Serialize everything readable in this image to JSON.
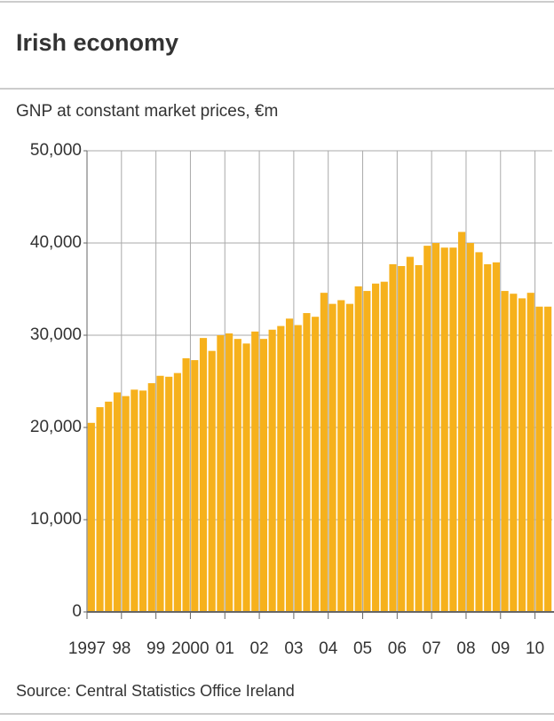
{
  "chart_data": {
    "type": "bar",
    "title": "Irish economy",
    "subtitle": "GNP at constant market prices, €m",
    "source": "Source: Central Statistics Office Ireland",
    "color": "#f6b11c",
    "grid": true,
    "categories": [
      "1997",
      null,
      null,
      null,
      "98",
      null,
      null,
      null,
      "99",
      null,
      null,
      null,
      "2000",
      null,
      null,
      null,
      "01",
      null,
      null,
      null,
      "02",
      null,
      null,
      null,
      "03",
      null,
      null,
      null,
      "04",
      null,
      null,
      null,
      "05",
      null,
      null,
      null,
      "06",
      null,
      null,
      null,
      "07",
      null,
      null,
      null,
      "08",
      null,
      null,
      null,
      "09",
      null,
      null,
      null,
      "10",
      null
    ],
    "values": [
      20500,
      22200,
      22800,
      23800,
      23400,
      24100,
      24000,
      24800,
      25600,
      25500,
      25900,
      27500,
      27300,
      29700,
      28300,
      30000,
      30200,
      29600,
      29100,
      30400,
      29600,
      30600,
      31000,
      31800,
      31100,
      32400,
      32000,
      34600,
      33400,
      33800,
      33400,
      35300,
      34800,
      35600,
      35800,
      37700,
      37500,
      38500,
      37600,
      39700,
      40000,
      39500,
      39500,
      41200,
      40000,
      39000,
      37700,
      37900,
      34800,
      34500,
      34000,
      34600,
      33100,
      33100
    ],
    "ylim": [
      0,
      50000
    ],
    "yticks": [
      0,
      {
        "value": 10000,
        "label": "10,000"
      },
      {
        "value": 20000,
        "label": "20,000"
      },
      {
        "value": 30000,
        "label": "30,000"
      },
      {
        "value": 40000,
        "label": "40,000"
      },
      {
        "value": 50000,
        "label": "50,000"
      }
    ]
  }
}
